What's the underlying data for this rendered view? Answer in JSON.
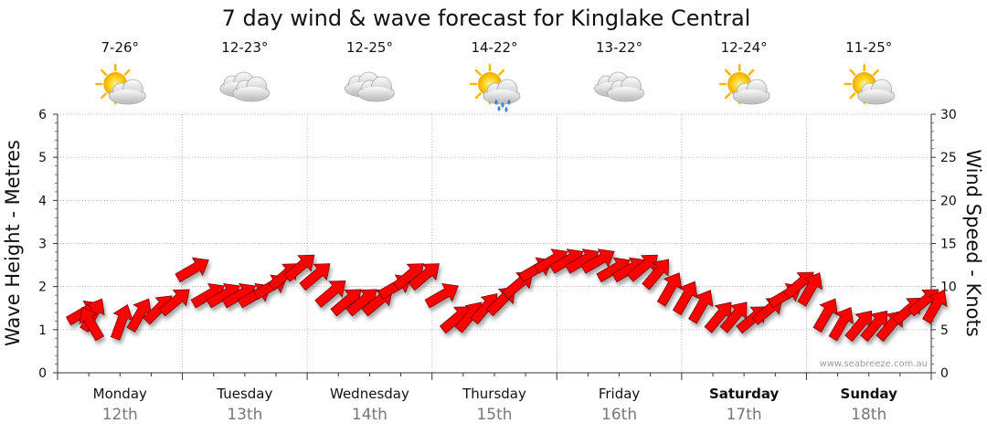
{
  "chart_data": {
    "type": "line",
    "title": "7 day wind & wave forecast for Kinglake Central",
    "ylabel_left": "Wave Height - Metres",
    "ylabel_right": "Wind Speed - Knots",
    "ylim_left": [
      0,
      6
    ],
    "ylim_right": [
      0,
      30
    ],
    "yticks_left": [
      "0",
      "1",
      "2",
      "3",
      "4",
      "5",
      "6"
    ],
    "yticks_right": [
      "0",
      "5",
      "10",
      "15",
      "20",
      "25",
      "30"
    ],
    "credit": "www.seabreeze.com.au",
    "days": [
      {
        "name": "Monday",
        "date": "12th",
        "bold": false,
        "temp": "7-26°",
        "icon": "partly-cloudy-icon"
      },
      {
        "name": "Tuesday",
        "date": "13th",
        "bold": false,
        "temp": "12-23°",
        "icon": "cloudy-icon"
      },
      {
        "name": "Wednesday",
        "date": "14th",
        "bold": false,
        "temp": "12-25°",
        "icon": "cloudy-icon"
      },
      {
        "name": "Thursday",
        "date": "15th",
        "bold": false,
        "temp": "14-22°",
        "icon": "partly-cloudy-showers-icon"
      },
      {
        "name": "Friday",
        "date": "16th",
        "bold": false,
        "temp": "13-22°",
        "icon": "cloudy-icon"
      },
      {
        "name": "Saturday",
        "date": "17th",
        "bold": true,
        "temp": "12-24°",
        "icon": "partly-cloudy-icon"
      },
      {
        "name": "Sunday",
        "date": "18th",
        "bold": true,
        "temp": "11-25°",
        "icon": "partly-cloudy-icon"
      }
    ],
    "series": [
      {
        "name": "Wind Speed (knots)",
        "color": "#ff0000",
        "hours": [
          0,
          3,
          6,
          9,
          12,
          15,
          18,
          21,
          24,
          27,
          30,
          33,
          36,
          39,
          42,
          45,
          48,
          51,
          54,
          57,
          60,
          63,
          66,
          69,
          72,
          75,
          78,
          81,
          84,
          87,
          90,
          93,
          96,
          99,
          102,
          105,
          108,
          111,
          114,
          117,
          120,
          123,
          126,
          129,
          132,
          135,
          138,
          141,
          144,
          147,
          150,
          153,
          156,
          159,
          162,
          165
        ],
        "values": [
          6,
          5,
          4,
          4,
          5,
          6,
          7,
          11,
          8,
          8,
          8,
          8,
          9,
          10,
          11,
          10,
          8,
          7,
          7,
          7,
          9,
          10,
          10,
          8,
          5,
          5,
          6,
          7,
          9,
          11,
          12,
          12,
          12,
          12,
          11,
          11,
          11,
          10,
          8,
          7,
          6,
          5,
          5,
          5,
          6,
          8,
          9,
          8,
          5,
          4,
          4,
          4,
          4,
          6,
          7,
          6
        ],
        "directions_deg": [
          330,
          300,
          240,
          290,
          300,
          315,
          320,
          330,
          330,
          330,
          330,
          330,
          330,
          320,
          320,
          320,
          320,
          320,
          320,
          320,
          330,
          320,
          320,
          330,
          320,
          310,
          310,
          315,
          320,
          330,
          330,
          330,
          330,
          330,
          330,
          330,
          320,
          310,
          300,
          300,
          300,
          310,
          310,
          320,
          320,
          330,
          320,
          300,
          300,
          300,
          310,
          310,
          310,
          320,
          320,
          300
        ]
      }
    ]
  }
}
